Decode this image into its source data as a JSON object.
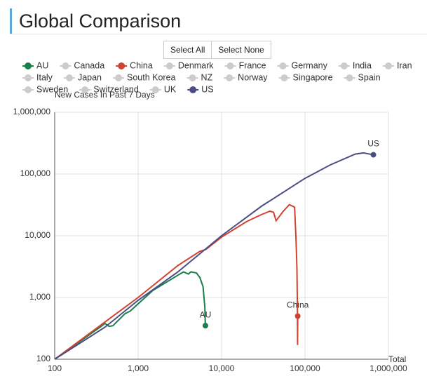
{
  "chart_data": {
    "type": "line",
    "title": "Global Comparison",
    "buttons": [
      "Select All",
      "Select None"
    ],
    "xlabel": "Total",
    "ylabel": "New Cases In Past 7 Days",
    "xscale": "log",
    "yscale": "log",
    "grid": true,
    "xlim": [
      100,
      1000000
    ],
    "ylim": [
      100,
      1000000
    ],
    "xticks": [
      100,
      {
        "value": 1000,
        "label": "1,000"
      },
      {
        "value": 10000,
        "label": "10,000"
      },
      {
        "value": 100000,
        "label": "100,000"
      },
      {
        "value": 1000000,
        "label": "1,000,000"
      }
    ],
    "yticks": [
      100,
      {
        "value": 1000,
        "label": "1,000"
      },
      {
        "value": 10000,
        "label": "10,000"
      },
      {
        "value": 100000,
        "label": "100,000"
      },
      {
        "value": 1000000,
        "label": "1,000,000"
      }
    ],
    "inactive_color": "#cccccc",
    "series": [
      {
        "name": "AU",
        "color": "#1a7f4b",
        "visible": true,
        "x": [
          100,
          350,
          400,
          450,
          500,
          700,
          800,
          1500,
          3000,
          3500,
          4000,
          4300,
          5000,
          5500,
          6000,
          6300,
          6400
        ],
        "values": [
          100,
          330,
          380,
          340,
          350,
          550,
          600,
          1300,
          2300,
          2600,
          2400,
          2600,
          2500,
          2100,
          1500,
          700,
          350
        ]
      },
      {
        "name": "Canada",
        "color": "#cccccc",
        "visible": false,
        "x": [],
        "values": []
      },
      {
        "name": "China",
        "color": "#d2432f",
        "visible": true,
        "x": [
          100,
          500,
          1000,
          3000,
          5500,
          6500,
          10000,
          20000,
          30000,
          38000,
          42000,
          45000,
          55000,
          65000,
          75000,
          78000,
          80000,
          81000,
          81500,
          81800
        ],
        "values": [
          100,
          500,
          1000,
          3300,
          5600,
          6000,
          9500,
          17000,
          22000,
          25000,
          24000,
          17500,
          25000,
          32000,
          29000,
          9000,
          3000,
          800,
          170,
          500
        ]
      },
      {
        "name": "Denmark",
        "color": "#cccccc",
        "visible": false,
        "x": [],
        "values": []
      },
      {
        "name": "France",
        "color": "#cccccc",
        "visible": false,
        "x": [],
        "values": []
      },
      {
        "name": "Germany",
        "color": "#cccccc",
        "visible": false,
        "x": [],
        "values": []
      },
      {
        "name": "India",
        "color": "#cccccc",
        "visible": false,
        "x": [],
        "values": []
      },
      {
        "name": "Iran",
        "color": "#cccccc",
        "visible": false,
        "x": [],
        "values": []
      },
      {
        "name": "Italy",
        "color": "#cccccc",
        "visible": false,
        "x": [],
        "values": []
      },
      {
        "name": "Japan",
        "color": "#cccccc",
        "visible": false,
        "x": [],
        "values": []
      },
      {
        "name": "South Korea",
        "color": "#cccccc",
        "visible": false,
        "x": [],
        "values": []
      },
      {
        "name": "NZ",
        "color": "#cccccc",
        "visible": false,
        "x": [],
        "values": []
      },
      {
        "name": "Norway",
        "color": "#cccccc",
        "visible": false,
        "x": [],
        "values": []
      },
      {
        "name": "Singapore",
        "color": "#cccccc",
        "visible": false,
        "x": [],
        "values": []
      },
      {
        "name": "Spain",
        "color": "#cccccc",
        "visible": false,
        "x": [],
        "values": []
      },
      {
        "name": "Sweden",
        "color": "#cccccc",
        "visible": false,
        "x": [],
        "values": []
      },
      {
        "name": "Switzerland",
        "color": "#cccccc",
        "visible": false,
        "x": [],
        "values": []
      },
      {
        "name": "UK",
        "color": "#cccccc",
        "visible": false,
        "x": [],
        "values": []
      },
      {
        "name": "US",
        "color": "#4a4d86",
        "visible": true,
        "x": [
          100,
          400,
          1000,
          3000,
          10000,
          30000,
          100000,
          200000,
          400000,
          500000,
          660000
        ],
        "values": [
          100,
          330,
          900,
          2600,
          10000,
          30000,
          85000,
          140000,
          210000,
          220000,
          205000
        ]
      }
    ]
  }
}
